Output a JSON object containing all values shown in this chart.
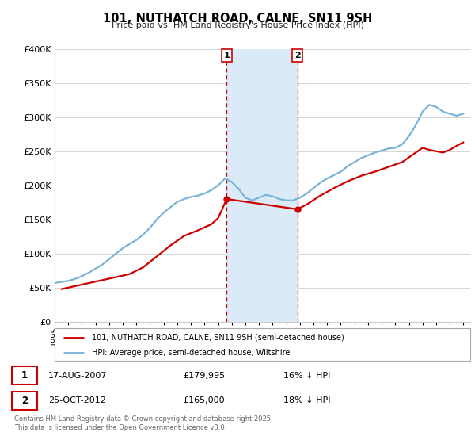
{
  "title": "101, NUTHATCH ROAD, CALNE, SN11 9SH",
  "subtitle": "Price paid vs. HM Land Registry's House Price Index (HPI)",
  "ylim": [
    0,
    400000
  ],
  "xlim_start": 1995,
  "xlim_end": 2025.5,
  "red_line_label": "101, NUTHATCH ROAD, CALNE, SN11 9SH (semi-detached house)",
  "blue_line_label": "HPI: Average price, semi-detached house, Wiltshire",
  "transaction1_date": "17-AUG-2007",
  "transaction1_price": "£179,995",
  "transaction1_hpi": "16% ↓ HPI",
  "transaction1_x": 2007.63,
  "transaction1_y": 179995,
  "transaction2_date": "25-OCT-2012",
  "transaction2_price": "£165,000",
  "transaction2_hpi": "18% ↓ HPI",
  "transaction2_x": 2012.81,
  "transaction2_y": 165000,
  "shade_color": "#daeaf6",
  "red_color": "#cc0000",
  "blue_color": "#7ab4d8",
  "footer": "Contains HM Land Registry data © Crown copyright and database right 2025.\nThis data is licensed under the Open Government Licence v3.0.",
  "hpi_years": [
    1995.0,
    1995.5,
    1996.0,
    1996.5,
    1997.0,
    1997.5,
    1998.0,
    1998.5,
    1999.0,
    1999.5,
    2000.0,
    2000.5,
    2001.0,
    2001.5,
    2002.0,
    2002.5,
    2003.0,
    2003.5,
    2004.0,
    2004.5,
    2005.0,
    2005.5,
    2006.0,
    2006.5,
    2007.0,
    2007.5,
    2008.0,
    2008.5,
    2009.0,
    2009.5,
    2010.0,
    2010.5,
    2011.0,
    2011.5,
    2012.0,
    2012.5,
    2013.0,
    2013.5,
    2014.0,
    2014.5,
    2015.0,
    2015.5,
    2016.0,
    2016.5,
    2017.0,
    2017.5,
    2018.0,
    2018.5,
    2019.0,
    2019.5,
    2020.0,
    2020.5,
    2021.0,
    2021.5,
    2022.0,
    2022.5,
    2023.0,
    2023.5,
    2024.0,
    2024.5,
    2025.0
  ],
  "hpi_values": [
    57000,
    58500,
    60000,
    63000,
    67000,
    72000,
    78000,
    84000,
    92000,
    100000,
    108000,
    114000,
    120000,
    128000,
    138000,
    150000,
    160000,
    168000,
    176000,
    180000,
    183000,
    185000,
    188000,
    193000,
    200000,
    210000,
    205000,
    195000,
    182000,
    178000,
    182000,
    186000,
    184000,
    180000,
    178000,
    178000,
    182000,
    188000,
    196000,
    204000,
    210000,
    215000,
    220000,
    228000,
    234000,
    240000,
    244000,
    248000,
    251000,
    254000,
    255000,
    260000,
    272000,
    288000,
    308000,
    318000,
    315000,
    308000,
    305000,
    302000,
    305000
  ],
  "property_years": [
    1995.5,
    2000.5,
    2001.5,
    2002.5,
    2003.5,
    2004.5,
    2005.5,
    2006.5,
    2007.0,
    2007.63,
    2012.81,
    2013.5,
    2014.5,
    2015.5,
    2016.5,
    2017.5,
    2018.5,
    2019.5,
    2020.5,
    2021.5,
    2022.0,
    2022.5,
    2023.0,
    2023.5,
    2024.0,
    2024.5,
    2025.0
  ],
  "property_values": [
    48000,
    70000,
    80000,
    96000,
    112000,
    126000,
    134000,
    143000,
    152000,
    179995,
    165000,
    172000,
    185000,
    196000,
    206000,
    214000,
    220000,
    227000,
    234000,
    248000,
    255000,
    252000,
    250000,
    248000,
    252000,
    258000,
    263000
  ]
}
